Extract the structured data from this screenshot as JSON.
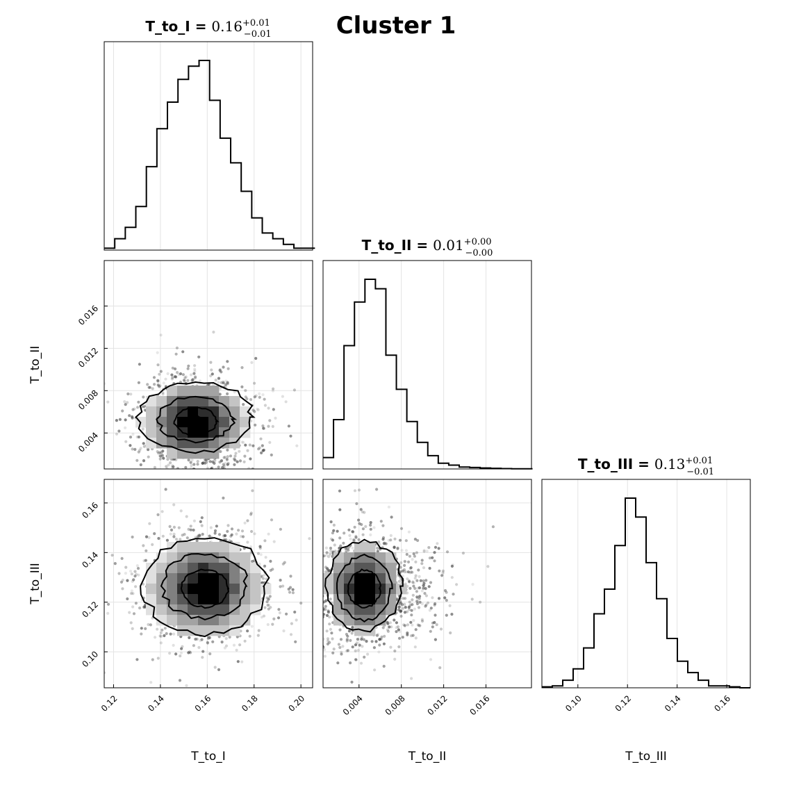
{
  "figure": {
    "title": "Cluster 1"
  },
  "chart_data": {
    "type": "corner",
    "parameters": [
      {
        "name": "T_to_I",
        "title_label": "T_to_I = ",
        "estimate": "0.16",
        "plus": "+0.01",
        "minus": "−0.01",
        "range": [
          0.116,
          0.205
        ],
        "ticks": [
          0.12,
          0.14,
          0.16,
          0.18,
          0.2
        ],
        "tick_labels": [
          "0.12",
          "0.14",
          "0.16",
          "0.18",
          "0.20"
        ]
      },
      {
        "name": "T_to_II",
        "title_label": "T_to_II = ",
        "estimate": "0.01",
        "plus": "+0.00",
        "minus": "−0.00",
        "range": [
          0.0006,
          0.0203
        ],
        "ticks": [
          0.004,
          0.008,
          0.012,
          0.016
        ],
        "tick_labels": [
          "0.004",
          "0.008",
          "0.012",
          "0.016"
        ]
      },
      {
        "name": "T_to_III",
        "title_label": "T_to_III = ",
        "estimate": "0.13",
        "plus": "+0.01",
        "minus": "−0.01",
        "range": [
          0.0855,
          0.1695
        ],
        "ticks": [
          0.1,
          0.12,
          0.14,
          0.16
        ],
        "tick_labels": [
          "0.10",
          "0.12",
          "0.14",
          "0.16"
        ]
      }
    ],
    "histograms": [
      {
        "parameter": "T_to_I",
        "bin_edges": [
          0.116,
          0.1205,
          0.125,
          0.1295,
          0.134,
          0.1385,
          0.143,
          0.1475,
          0.152,
          0.1565,
          0.161,
          0.1655,
          0.17,
          0.1745,
          0.179,
          0.1835,
          0.188,
          0.1925,
          0.197,
          0.2015,
          0.206
        ],
        "counts": [
          1,
          6,
          12,
          23,
          44,
          64,
          78,
          90,
          97,
          100,
          79,
          59,
          46,
          31,
          17,
          9,
          6,
          3,
          1,
          1
        ]
      },
      {
        "parameter": "T_to_II",
        "bin_edges": [
          0.0006,
          0.00159,
          0.00258,
          0.00357,
          0.00456,
          0.00555,
          0.00654,
          0.00753,
          0.00852,
          0.00951,
          0.0105,
          0.01149,
          0.01248,
          0.01347,
          0.01446,
          0.01545,
          0.01644,
          0.01743,
          0.01842,
          0.01941,
          0.0204
        ],
        "counts": [
          6,
          26,
          65,
          88,
          100,
          95,
          60,
          42,
          25,
          14,
          7,
          3,
          2,
          1,
          0.8,
          0.5,
          0.3,
          0.2,
          0.1,
          0.1
        ]
      },
      {
        "parameter": "T_to_III",
        "bin_edges": [
          0.0855,
          0.0897,
          0.0939,
          0.0981,
          0.1023,
          0.1065,
          0.1107,
          0.1149,
          0.1191,
          0.1233,
          0.1275,
          0.1317,
          0.1359,
          0.1401,
          0.1443,
          0.1485,
          0.1527,
          0.1569,
          0.1611,
          0.1653,
          0.1695
        ],
        "counts": [
          0.5,
          1,
          4,
          10,
          21,
          39,
          52,
          75,
          100,
          90,
          66,
          47,
          26,
          14,
          8,
          4,
          1,
          1,
          0.5,
          0
        ]
      }
    ],
    "joint": [
      {
        "x": "T_to_I",
        "y": "T_to_II",
        "peak": [
          0.155,
          0.005
        ],
        "std": [
          0.013,
          0.0024
        ],
        "contour_levels": [
          {
            "rx": 0.024,
            "ry": 0.0033,
            "dy": 0.0005
          },
          {
            "rx": 0.016,
            "ry": 0.0021,
            "dy": 0.0003
          },
          {
            "rx": 0.009,
            "ry": 0.0013,
            "dy": 0.0001
          },
          {
            "rx": 0.003,
            "ry": 0.0006,
            "dy": 0.0
          }
        ]
      },
      {
        "x": "T_to_I",
        "y": "T_to_III",
        "peak": [
          0.159,
          0.1255
        ],
        "std": [
          0.014,
          0.0115
        ],
        "contour_levels": [
          {
            "rx": 0.026,
            "ry": 0.02,
            "dy": 0.001
          },
          {
            "rx": 0.018,
            "ry": 0.013,
            "dy": 0.001
          },
          {
            "rx": 0.01,
            "ry": 0.0075,
            "dy": 0.0
          },
          {
            "rx": 0.004,
            "ry": 0.003,
            "dy": 0.0
          }
        ]
      },
      {
        "x": "T_to_II",
        "y": "T_to_III",
        "peak": [
          0.0045,
          0.1255
        ],
        "std": [
          0.0022,
          0.0115
        ],
        "contour_levels": [
          {
            "rx": 0.0035,
            "ry": 0.018,
            "dy": 0.001
          },
          {
            "rx": 0.0025,
            "ry": 0.013,
            "dy": 0.0
          },
          {
            "rx": 0.0015,
            "ry": 0.0075,
            "dy": 0.0
          },
          {
            "rx": 0.0006,
            "ry": 0.003,
            "dy": 0.0
          }
        ]
      }
    ],
    "grid": true
  }
}
